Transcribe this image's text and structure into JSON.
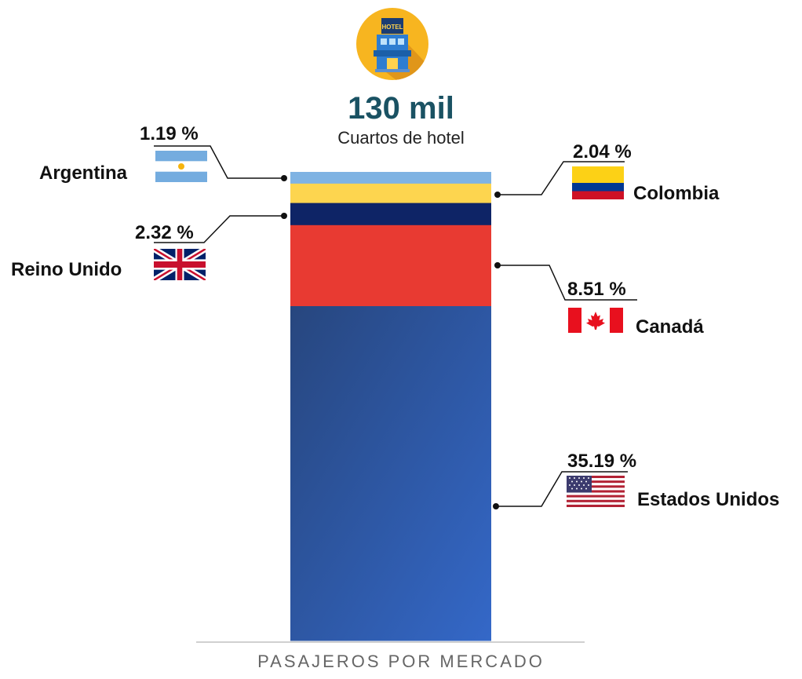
{
  "header": {
    "total": "130 mil",
    "subtitle": "Cuartos de hotel",
    "icon": "hotel-icon"
  },
  "chart_data": {
    "type": "bar",
    "stacked": true,
    "xlabel": "PASAJEROS POR MERCADO",
    "segments": [
      {
        "country": "Estados Unidos",
        "label": "35.19 %",
        "value": 35.19,
        "color": "#2f5fb3",
        "flag": "usa-flag-icon"
      },
      {
        "country": "Canadá",
        "label": "8.51 %",
        "value": 8.51,
        "color": "#e83a32",
        "flag": "canada-flag-icon"
      },
      {
        "country": "Reino Unido",
        "label": "2.32 %",
        "value": 2.32,
        "color": "#0e2466",
        "flag": "uk-flag-icon"
      },
      {
        "country": "Colombia",
        "label": "2.04 %",
        "value": 2.04,
        "color": "#fdd54f",
        "flag": "colombia-flag-icon"
      },
      {
        "country": "Argentina",
        "label": "1.19 %",
        "value": 1.19,
        "color": "#7fb3e3",
        "flag": "argentina-flag-icon"
      }
    ]
  }
}
